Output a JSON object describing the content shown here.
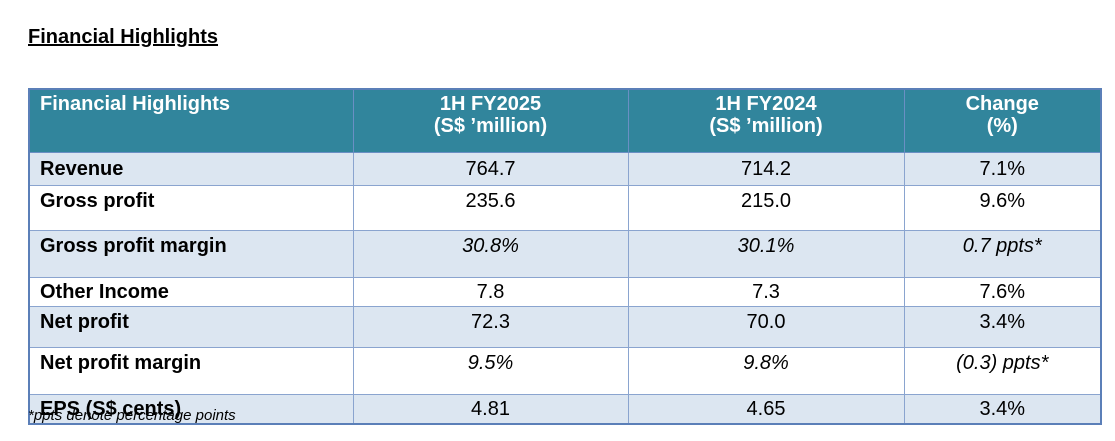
{
  "heading": "Financial Highlights",
  "table": {
    "headers": [
      {
        "line1": "Financial Highlights",
        "line2": ""
      },
      {
        "line1": "1H FY2025",
        "line2": "(S$ ’million)"
      },
      {
        "line1": "1H FY2024",
        "line2": "(S$ ’million)"
      },
      {
        "line1": "Change",
        "line2": "(%)"
      }
    ],
    "rows": [
      {
        "label": "Revenue",
        "fy2025": "764.7",
        "fy2024": "714.2",
        "change": "7.1%"
      },
      {
        "label": "Gross profit",
        "fy2025": "235.6",
        "fy2024": "215.0",
        "change": "9.6%"
      },
      {
        "label": "Gross profit margin",
        "fy2025": "30.8%",
        "fy2024": "30.1%",
        "change": "0.7 ppts*"
      },
      {
        "label": "Other Income",
        "fy2025": "7.8",
        "fy2024": "7.3",
        "change": "7.6%"
      },
      {
        "label": "Net profit",
        "fy2025": "72.3",
        "fy2024": "70.0",
        "change": "3.4%"
      },
      {
        "label": "Net profit margin",
        "fy2025": "9.5%",
        "fy2024": "9.8%",
        "change": "(0.3) ppts*"
      },
      {
        "label": "EPS (S$ cents)",
        "fy2025": "4.81",
        "fy2024": "4.65",
        "change": "3.4%"
      }
    ]
  },
  "footnote": "*ppts denote percentage points",
  "colors": {
    "header_bg": "#31859c",
    "header_text": "#ffffff",
    "row_shade": "#dce6f1",
    "border": "#5b7fb8"
  }
}
